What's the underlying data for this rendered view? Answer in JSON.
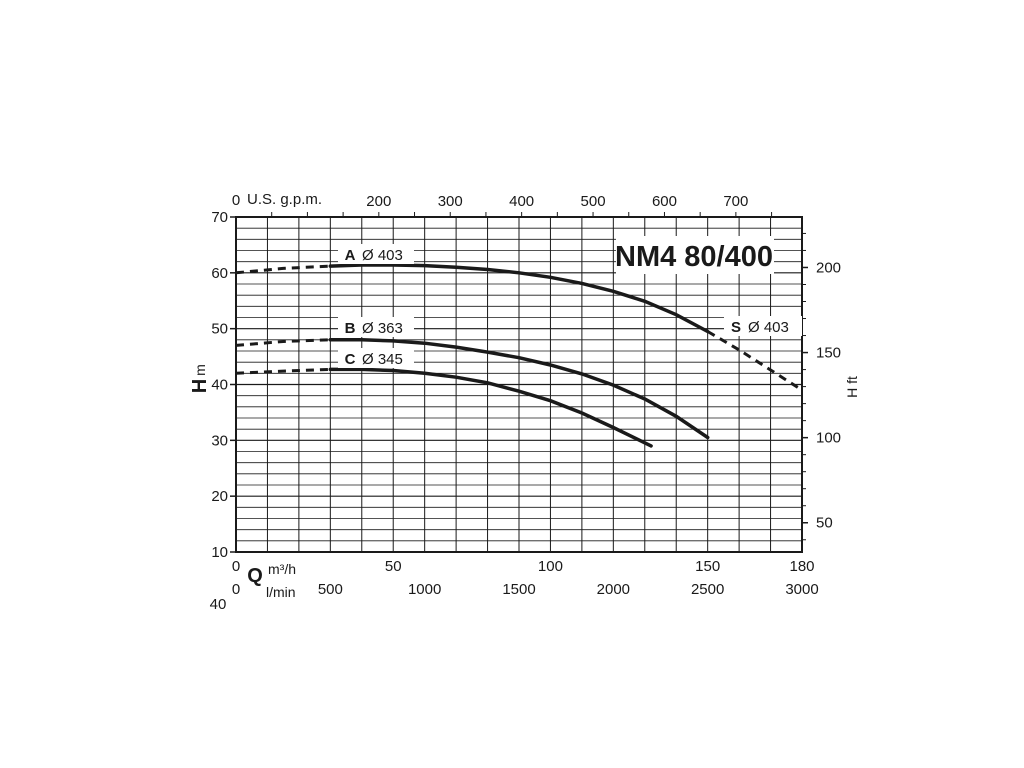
{
  "chart_data": {
    "type": "line",
    "title": "NM4 80/400",
    "x": {
      "unit": "m³/h",
      "range": [
        0,
        180
      ],
      "ticks": [
        0,
        50,
        100,
        150,
        180
      ]
    },
    "y_left": {
      "symbol": "H",
      "unit": "m",
      "range": [
        10,
        70
      ],
      "ticks": [
        10,
        20,
        30,
        40,
        50,
        60,
        70
      ]
    },
    "y_right": {
      "label": "H ft",
      "ticks": [
        50,
        100,
        150,
        200
      ]
    },
    "top_axis": {
      "label": "U.S. g.p.m.",
      "zero": "0",
      "ticks": [
        200,
        300,
        400,
        500,
        600,
        700
      ]
    },
    "bottom_axis_2": {
      "unit": "l/min",
      "ticks": [
        0,
        500,
        1000,
        1500,
        2000,
        2500,
        3000
      ]
    },
    "q_symbol": "Q",
    "cut_off_tick": "40",
    "grid": true,
    "series": [
      {
        "name": "A",
        "diameter": "Ø 403",
        "dashed": [
          [
            0,
            60.0
          ],
          [
            15,
            60.8
          ],
          [
            30,
            61.2
          ]
        ],
        "solid": [
          [
            30,
            61.2
          ],
          [
            40,
            61.4
          ],
          [
            50,
            61.4
          ],
          [
            60,
            61.3
          ],
          [
            70,
            61.0
          ],
          [
            80,
            60.6
          ],
          [
            90,
            60.0
          ],
          [
            100,
            59.2
          ],
          [
            110,
            58.1
          ],
          [
            120,
            56.7
          ],
          [
            130,
            54.9
          ],
          [
            140,
            52.5
          ],
          [
            150,
            49.5
          ]
        ]
      },
      {
        "name": "S",
        "diameter": "Ø 403",
        "dashed": [
          [
            150,
            49.5
          ],
          [
            160,
            46.2
          ],
          [
            170,
            42.6
          ],
          [
            180,
            39.0
          ]
        ],
        "solid": []
      },
      {
        "name": "B",
        "diameter": "Ø 363",
        "dashed": [
          [
            0,
            47.0
          ],
          [
            15,
            47.7
          ],
          [
            30,
            48.0
          ]
        ],
        "solid": [
          [
            30,
            48.0
          ],
          [
            40,
            48.0
          ],
          [
            50,
            47.8
          ],
          [
            60,
            47.4
          ],
          [
            70,
            46.7
          ],
          [
            80,
            45.8
          ],
          [
            90,
            44.8
          ],
          [
            100,
            43.5
          ],
          [
            110,
            41.9
          ],
          [
            120,
            39.9
          ],
          [
            130,
            37.4
          ],
          [
            140,
            34.3
          ],
          [
            150,
            30.5
          ]
        ]
      },
      {
        "name": "C",
        "diameter": "Ø 345",
        "dashed": [
          [
            0,
            42.0
          ],
          [
            15,
            42.4
          ],
          [
            30,
            42.7
          ]
        ],
        "solid": [
          [
            30,
            42.7
          ],
          [
            40,
            42.7
          ],
          [
            50,
            42.5
          ],
          [
            60,
            42.0
          ],
          [
            70,
            41.3
          ],
          [
            80,
            40.3
          ],
          [
            90,
            38.8
          ],
          [
            100,
            37.1
          ],
          [
            110,
            34.9
          ],
          [
            120,
            32.3
          ],
          [
            132,
            29.0
          ]
        ]
      }
    ]
  }
}
